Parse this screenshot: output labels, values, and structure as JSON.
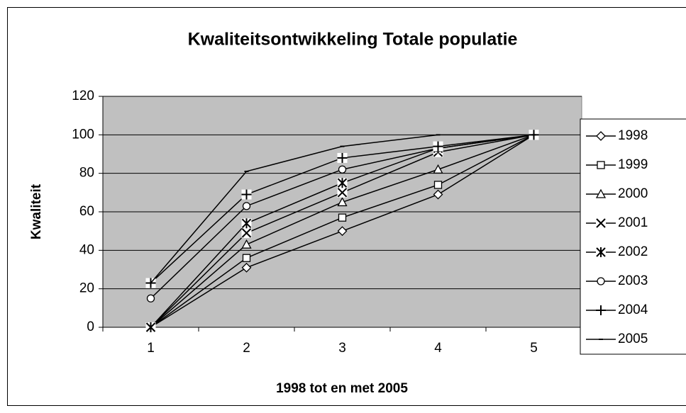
{
  "chart_data": {
    "type": "line",
    "title": "Kwaliteitsontwikkeling Totale populatie",
    "x_label": "1998 tot en met 2005",
    "y_label": "Kwaliteit",
    "categories": [
      "1",
      "2",
      "3",
      "4",
      "5"
    ],
    "ylim": [
      0,
      120
    ],
    "yticks": [
      0,
      20,
      40,
      60,
      80,
      100,
      120
    ],
    "grid": true,
    "legend": "right",
    "series": [
      {
        "name": "1998",
        "color": "#000000",
        "marker": "diamond",
        "values": [
          0,
          31,
          50,
          69,
          100
        ]
      },
      {
        "name": "1999",
        "color": "#000000",
        "marker": "square",
        "values": [
          0,
          36,
          57,
          74,
          100
        ]
      },
      {
        "name": "2000",
        "color": "#000000",
        "marker": "triangle",
        "values": [
          0,
          43,
          65,
          82,
          100
        ]
      },
      {
        "name": "2001",
        "color": "#000000",
        "marker": "x",
        "values": [
          0,
          49,
          70,
          91,
          100
        ]
      },
      {
        "name": "2002",
        "color": "#000000",
        "marker": "star",
        "values": [
          0,
          54,
          75,
          93,
          100
        ]
      },
      {
        "name": "2003",
        "color": "#000000",
        "marker": "circle",
        "values": [
          15,
          63,
          82,
          93,
          100
        ]
      },
      {
        "name": "2004",
        "color": "#000000",
        "marker": "plus",
        "values": [
          23,
          69,
          88,
          94,
          100
        ]
      },
      {
        "name": "2005",
        "color": "#000000",
        "marker": "dash",
        "values": [
          23,
          81,
          94,
          100,
          100
        ]
      }
    ]
  }
}
